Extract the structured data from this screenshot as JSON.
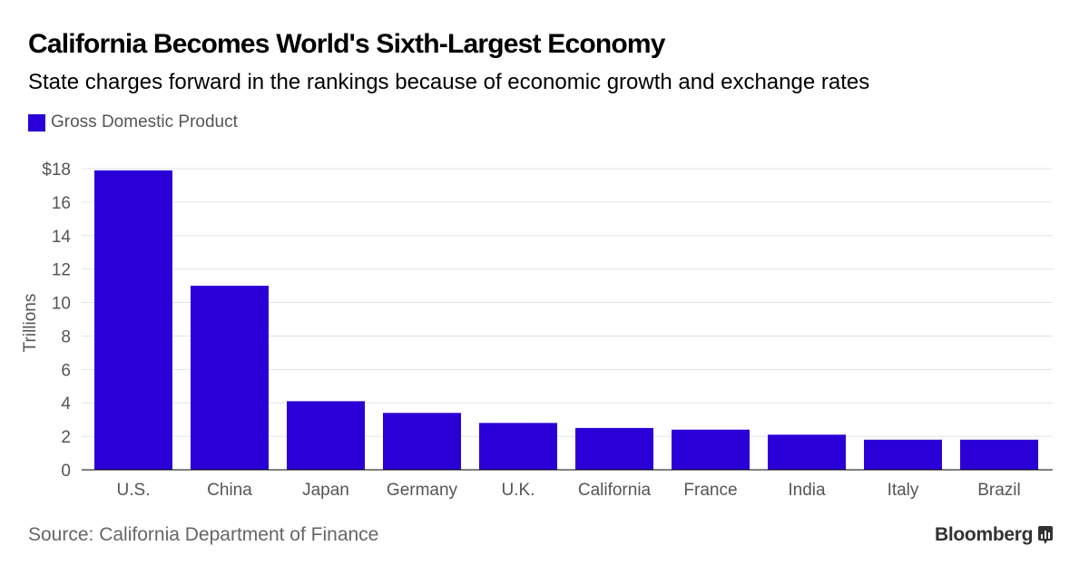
{
  "header": {
    "title": "California Becomes World's Sixth-Largest Economy",
    "subtitle": "State charges forward in the rankings because of economic growth and exchange rates"
  },
  "legend": {
    "label": "Gross Domestic Product",
    "color": "#2b00d6"
  },
  "footer": {
    "source": "Source: California Department of Finance",
    "brand": "Bloomberg",
    "brand_icon": "bloomberg-terminal-icon"
  },
  "chart_data": {
    "type": "bar",
    "title": "California Becomes World's Sixth-Largest Economy",
    "xlabel": "",
    "ylabel": "Trillions",
    "categories": [
      "U.S.",
      "China",
      "Japan",
      "Germany",
      "U.K.",
      "California",
      "France",
      "India",
      "Italy",
      "Brazil"
    ],
    "series": [
      {
        "name": "Gross Domestic Product",
        "values": [
          17.9,
          11.0,
          4.1,
          3.4,
          2.8,
          2.5,
          2.4,
          2.1,
          1.8,
          1.8
        ]
      }
    ],
    "ylim": [
      0,
      18
    ],
    "yticks": [
      0,
      2,
      4,
      6,
      8,
      10,
      12,
      14,
      16,
      18
    ],
    "ytick_labels": [
      "0",
      "2",
      "4",
      "6",
      "8",
      "10",
      "12",
      "14",
      "16",
      "$18"
    ],
    "grid": true,
    "bar_color": "#2b00d6",
    "legend_position": "top-left"
  }
}
